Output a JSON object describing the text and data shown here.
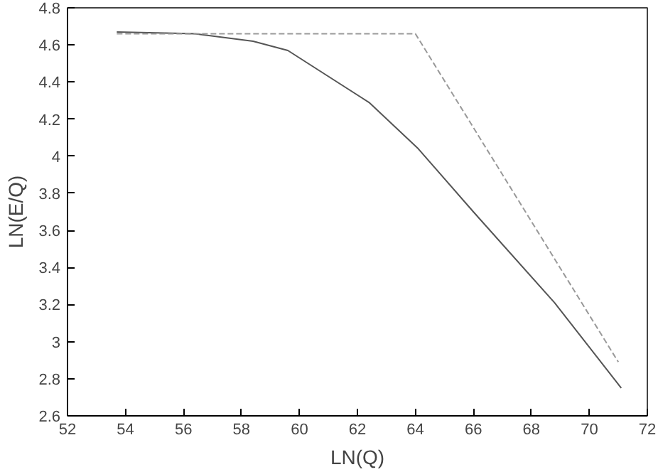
{
  "chart_data": {
    "type": "line",
    "xlabel": "LN(Q)",
    "ylabel": "LN(E/Q)",
    "xlim": [
      52,
      72
    ],
    "ylim": [
      2.6,
      4.8
    ],
    "xticks": [
      52,
      54,
      56,
      58,
      60,
      62,
      64,
      66,
      68,
      70,
      72
    ],
    "yticks": [
      2.6,
      2.8,
      3,
      3.2,
      3.4,
      3.6,
      3.8,
      4,
      4.2,
      4.4,
      4.6,
      4.8
    ],
    "series": [
      {
        "color": "#555555",
        "line_style": "solid",
        "x": [
          53.7,
          56.4,
          58.4,
          59.6,
          60.5,
          62.4,
          64.1,
          66.0,
          68.8,
          71.1
        ],
        "values": [
          4.67,
          4.66,
          4.62,
          4.57,
          4.48,
          4.29,
          4.04,
          3.7,
          3.21,
          2.75
        ]
      },
      {
        "color": "#999999",
        "line_style": "dashed",
        "x": [
          53.7,
          64.0,
          71.0
        ],
        "values": [
          4.66,
          4.66,
          2.89
        ]
      }
    ]
  }
}
